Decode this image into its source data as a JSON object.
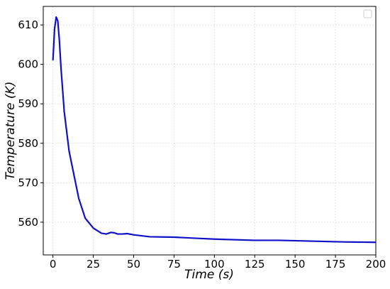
{
  "chart_data": {
    "type": "line",
    "x_label": "Time (s)",
    "y_label": "Temperature (K)",
    "x": [
      0,
      1,
      2,
      3,
      4,
      5,
      7,
      10,
      13,
      16,
      20,
      25,
      30,
      33,
      36,
      38,
      40,
      43,
      46,
      50,
      60,
      75,
      90,
      100,
      125,
      140,
      160,
      180,
      200
    ],
    "series": [
      {
        "color": "#1010c8",
        "values": [
          601,
          609,
          612,
          611,
          606,
          599,
          588,
          578,
          572,
          566,
          561,
          558.5,
          557.2,
          557,
          557.4,
          557.3,
          557,
          557,
          557.1,
          556.8,
          556.3,
          556.2,
          555.9,
          555.7,
          555.4,
          555.4,
          555.2,
          555.0,
          554.9
        ]
      }
    ],
    "xlim": [
      -6,
      200
    ],
    "ylim": [
      551.7,
      614.7
    ],
    "xticks": [
      0,
      25,
      50,
      75,
      100,
      125,
      150,
      175,
      200
    ],
    "yticks": [
      560,
      570,
      580,
      590,
      600,
      610
    ],
    "grid": true
  }
}
